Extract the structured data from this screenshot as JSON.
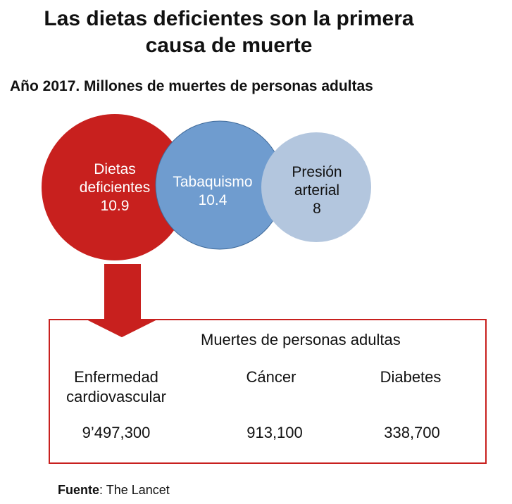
{
  "title": "Las dietas deficientes son la primera causa de muerte",
  "subtitle": "Año 2017. Millones de muertes de personas adultas",
  "circles": [
    {
      "label_1": "Dietas",
      "label_2": "deficientes",
      "value": "10.9",
      "color": "#c8201e",
      "text_color": "#ffffff"
    },
    {
      "label_1": "Tabaquismo",
      "value": "10.4",
      "color": "#6f9ccf",
      "text_color": "#ffffff"
    },
    {
      "label_1": "Presión",
      "label_2": "arterial",
      "value": "8",
      "color": "#b3c6de",
      "text_color": "#111111"
    }
  ],
  "box": {
    "heading": "Muertes de personas adultas",
    "columns": [
      {
        "label_1": "Enfermedad",
        "label_2": "cardiovascular",
        "value": "9’497,300"
      },
      {
        "label_1": "Cáncer",
        "value": "913,100"
      },
      {
        "label_1": "Diabetes",
        "value": "338,700"
      }
    ]
  },
  "source": {
    "label": "Fuente",
    "text": ": The Lancet"
  }
}
